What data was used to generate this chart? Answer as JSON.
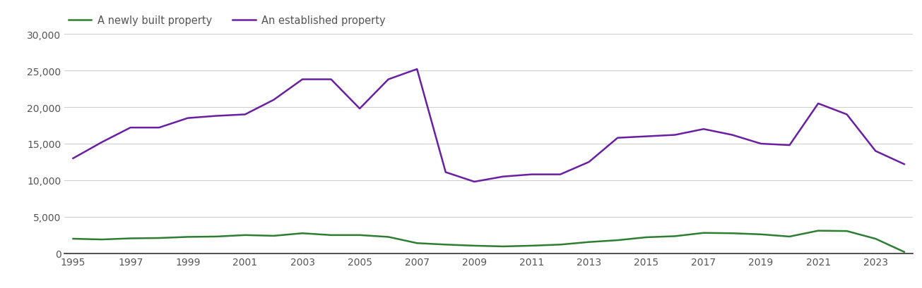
{
  "years": [
    1995,
    1996,
    1997,
    1998,
    1999,
    2000,
    2001,
    2002,
    2003,
    2004,
    2005,
    2006,
    2007,
    2008,
    2009,
    2010,
    2011,
    2012,
    2013,
    2014,
    2015,
    2016,
    2017,
    2018,
    2019,
    2020,
    2021,
    2022,
    2023,
    2024
  ],
  "new_build": [
    2000,
    1900,
    2050,
    2100,
    2250,
    2300,
    2500,
    2400,
    2750,
    2500,
    2500,
    2250,
    1400,
    1200,
    1050,
    950,
    1050,
    1200,
    1550,
    1800,
    2200,
    2350,
    2800,
    2750,
    2600,
    2300,
    3100,
    3050,
    2000,
    200
  ],
  "established": [
    13000,
    15200,
    17200,
    17200,
    18500,
    18800,
    19000,
    21000,
    23800,
    23800,
    19800,
    23800,
    25200,
    11100,
    9800,
    10500,
    10800,
    10800,
    12500,
    15800,
    16000,
    16200,
    17000,
    16200,
    15000,
    14800,
    20500,
    19000,
    14000,
    12200
  ],
  "new_build_color": "#2e7d32",
  "established_color": "#6a1fa0",
  "new_build_label": "A newly built property",
  "established_label": "An established property",
  "ylim": [
    0,
    30000
  ],
  "yticks": [
    0,
    5000,
    10000,
    15000,
    20000,
    25000,
    30000
  ],
  "background_color": "#ffffff",
  "grid_color": "#d0d0d0",
  "line_width": 1.8,
  "legend_fontsize": 10.5,
  "tick_fontsize": 10,
  "tick_color": "#555555",
  "axis_color": "#333333"
}
